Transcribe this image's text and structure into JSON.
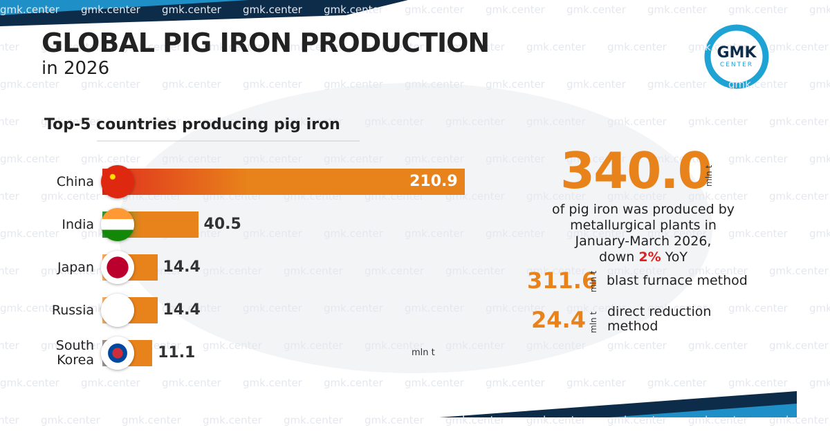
{
  "header": {
    "title": "GLOBAL PIG IRON PRODUCTION",
    "subtitle": "in 2026",
    "watermark": "gmk.center",
    "logo_top": "GMK",
    "logo_bottom": "CENTER"
  },
  "chart_data": {
    "type": "bar",
    "orientation": "horizontal",
    "title": "Top-5 countries producing pig iron",
    "categories": [
      "China",
      "India",
      "Japan",
      "Russia",
      "South Korea"
    ],
    "values": [
      210.9,
      40.5,
      14.4,
      14.4,
      11.1
    ],
    "color": "#e8821a",
    "unit": "mln t",
    "xlim": [
      0,
      215
    ]
  },
  "summary": {
    "total": "340.0",
    "total_unit": "mln t",
    "description_lines": [
      "of pig iron was produced by",
      "metallurgical plants in",
      "January-March 2026,"
    ],
    "change_prefix": "down",
    "change": "2%",
    "change_suffix": "YoY",
    "methods": [
      {
        "value": "311.6",
        "unit": "mln t",
        "label": "blast furnace method"
      },
      {
        "value": "24.4",
        "unit": "mln t",
        "label": "direct reduction method"
      }
    ]
  }
}
